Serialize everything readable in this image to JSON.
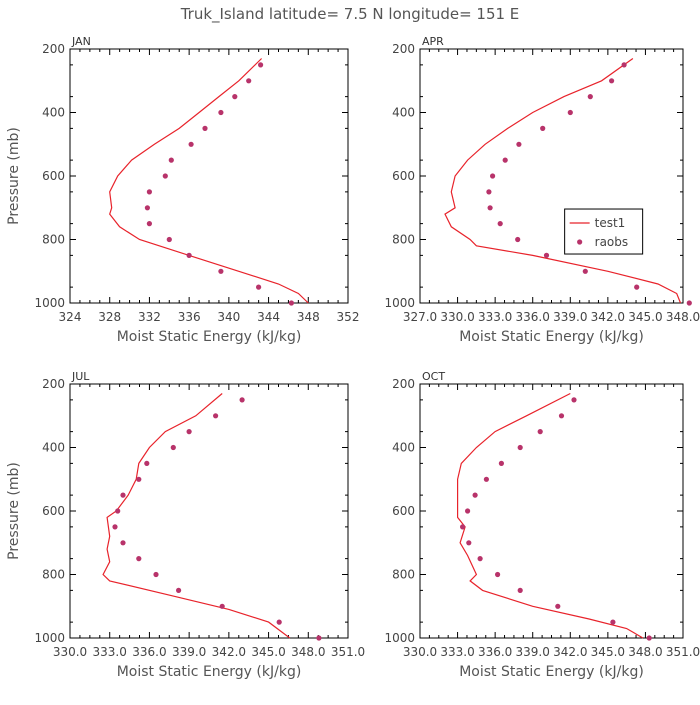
{
  "figure_title": "Truk_Island  latitude= 7.5 N longitude= 151 E",
  "colors": {
    "model": "#e8232b",
    "obs": "#b8336a",
    "axis": "#000000"
  },
  "chart_data": [
    {
      "type": "line",
      "panel": "JAN",
      "xlabel": "Moist Static Energy (kJ/kg)",
      "ylabel": "Pressure (mb)",
      "xlim": [
        324,
        352
      ],
      "ylim": [
        1000,
        200
      ],
      "x_ticks": [
        "324",
        "328",
        "332",
        "336",
        "340",
        "344",
        "348",
        "352"
      ],
      "y_ticks": [
        "200",
        "400",
        "600",
        "800",
        "1000"
      ],
      "series": [
        {
          "name": "test1",
          "kind": "line",
          "points": [
            [
              343.3,
              230
            ],
            [
              341.0,
              300
            ],
            [
              339.0,
              350
            ],
            [
              337.0,
              400
            ],
            [
              335.0,
              450
            ],
            [
              332.5,
              500
            ],
            [
              330.2,
              550
            ],
            [
              328.8,
              600
            ],
            [
              328.0,
              650
            ],
            [
              328.2,
              700
            ],
            [
              328.0,
              720
            ],
            [
              329.0,
              760
            ],
            [
              331.0,
              800
            ],
            [
              336.0,
              850
            ],
            [
              341.0,
              900
            ],
            [
              345.0,
              940
            ],
            [
              347.0,
              970
            ],
            [
              348.0,
              1000
            ]
          ]
        },
        {
          "name": "raobs",
          "kind": "scatter",
          "points": [
            [
              343.2,
              250
            ],
            [
              342.0,
              300
            ],
            [
              340.6,
              350
            ],
            [
              339.2,
              400
            ],
            [
              337.6,
              450
            ],
            [
              336.2,
              500
            ],
            [
              334.2,
              550
            ],
            [
              333.6,
              600
            ],
            [
              332.0,
              650
            ],
            [
              331.8,
              700
            ],
            [
              332.0,
              750
            ],
            [
              334.0,
              800
            ],
            [
              336.0,
              850
            ],
            [
              339.2,
              900
            ],
            [
              343.0,
              950
            ],
            [
              346.3,
              1000
            ]
          ]
        }
      ]
    },
    {
      "type": "line",
      "panel": "APR",
      "xlabel": "Moist Static Energy (kJ/kg)",
      "ylabel": "",
      "xlim": [
        327.0,
        348.0
      ],
      "ylim": [
        1000,
        200
      ],
      "x_ticks": [
        "327.0",
        "330.0",
        "333.0",
        "336.0",
        "339.0",
        "342.0",
        "345.0",
        "348.0"
      ],
      "y_ticks": [
        "200",
        "400",
        "600",
        "800",
        "1000"
      ],
      "series": [
        {
          "name": "test1",
          "kind": "line",
          "points": [
            [
              344.0,
              230
            ],
            [
              341.5,
              300
            ],
            [
              338.5,
              350
            ],
            [
              336.0,
              400
            ],
            [
              334.0,
              450
            ],
            [
              332.2,
              500
            ],
            [
              330.8,
              550
            ],
            [
              329.8,
              600
            ],
            [
              329.5,
              650
            ],
            [
              329.8,
              700
            ],
            [
              329.0,
              720
            ],
            [
              329.5,
              760
            ],
            [
              331.0,
              800
            ],
            [
              331.5,
              820
            ],
            [
              336.0,
              850
            ],
            [
              342.0,
              900
            ],
            [
              346.0,
              940
            ],
            [
              347.5,
              970
            ],
            [
              347.8,
              1000
            ]
          ]
        },
        {
          "name": "raobs",
          "kind": "scatter",
          "points": [
            [
              343.3,
              250
            ],
            [
              342.3,
              300
            ],
            [
              340.6,
              350
            ],
            [
              339.0,
              400
            ],
            [
              336.8,
              450
            ],
            [
              334.9,
              500
            ],
            [
              333.8,
              550
            ],
            [
              332.8,
              600
            ],
            [
              332.5,
              650
            ],
            [
              332.6,
              700
            ],
            [
              333.4,
              750
            ],
            [
              334.8,
              800
            ],
            [
              337.1,
              850
            ],
            [
              340.2,
              900
            ],
            [
              344.3,
              950
            ],
            [
              348.5,
              1000
            ]
          ]
        }
      ]
    },
    {
      "type": "line",
      "panel": "JUL",
      "xlabel": "Moist Static Energy (kJ/kg)",
      "ylabel": "Pressure (mb)",
      "xlim": [
        330.0,
        351.0
      ],
      "ylim": [
        1000,
        200
      ],
      "x_ticks": [
        "330.0",
        "333.0",
        "336.0",
        "339.0",
        "342.0",
        "345.0",
        "348.0",
        "351.0"
      ],
      "y_ticks": [
        "200",
        "400",
        "600",
        "800",
        "1000"
      ],
      "series": [
        {
          "name": "test1",
          "kind": "line",
          "points": [
            [
              341.5,
              230
            ],
            [
              339.5,
              300
            ],
            [
              337.2,
              350
            ],
            [
              336.0,
              400
            ],
            [
              335.2,
              450
            ],
            [
              335.0,
              500
            ],
            [
              334.4,
              550
            ],
            [
              333.5,
              600
            ],
            [
              332.8,
              620
            ],
            [
              333.0,
              680
            ],
            [
              332.8,
              720
            ],
            [
              333.0,
              760
            ],
            [
              332.5,
              800
            ],
            [
              333.0,
              820
            ],
            [
              338.0,
              870
            ],
            [
              342.0,
              910
            ],
            [
              345.0,
              950
            ],
            [
              346.6,
              1000
            ]
          ]
        },
        {
          "name": "raobs",
          "kind": "scatter",
          "points": [
            [
              343.0,
              250
            ],
            [
              341.0,
              300
            ],
            [
              339.0,
              350
            ],
            [
              337.8,
              400
            ],
            [
              335.8,
              450
            ],
            [
              335.2,
              500
            ],
            [
              334.0,
              550
            ],
            [
              333.6,
              600
            ],
            [
              333.4,
              650
            ],
            [
              334.0,
              700
            ],
            [
              335.2,
              750
            ],
            [
              336.5,
              800
            ],
            [
              338.2,
              850
            ],
            [
              341.5,
              900
            ],
            [
              345.8,
              950
            ],
            [
              348.8,
              1000
            ]
          ]
        }
      ]
    },
    {
      "type": "line",
      "panel": "OCT",
      "xlabel": "Moist Static Energy (kJ/kg)",
      "ylabel": "",
      "xlim": [
        330.0,
        351.0
      ],
      "ylim": [
        1000,
        200
      ],
      "x_ticks": [
        "330.0",
        "333.0",
        "336.0",
        "339.0",
        "342.0",
        "345.0",
        "348.0",
        "351.0"
      ],
      "y_ticks": [
        "200",
        "400",
        "600",
        "800",
        "1000"
      ],
      "series": [
        {
          "name": "test1",
          "kind": "line",
          "points": [
            [
              342.0,
              230
            ],
            [
              338.5,
              300
            ],
            [
              336.0,
              350
            ],
            [
              334.5,
              400
            ],
            [
              333.3,
              450
            ],
            [
              333.0,
              500
            ],
            [
              333.0,
              560
            ],
            [
              333.0,
              620
            ],
            [
              333.6,
              650
            ],
            [
              333.2,
              700
            ],
            [
              333.8,
              740
            ],
            [
              334.5,
              800
            ],
            [
              334.0,
              820
            ],
            [
              335.0,
              850
            ],
            [
              339.0,
              900
            ],
            [
              343.5,
              940
            ],
            [
              346.5,
              970
            ],
            [
              347.8,
              1000
            ]
          ]
        },
        {
          "name": "raobs",
          "kind": "scatter",
          "points": [
            [
              342.3,
              250
            ],
            [
              341.3,
              300
            ],
            [
              339.6,
              350
            ],
            [
              338.0,
              400
            ],
            [
              336.5,
              450
            ],
            [
              335.3,
              500
            ],
            [
              334.4,
              550
            ],
            [
              333.8,
              600
            ],
            [
              333.4,
              650
            ],
            [
              333.9,
              700
            ],
            [
              334.8,
              750
            ],
            [
              336.2,
              800
            ],
            [
              338.0,
              850
            ],
            [
              341.0,
              900
            ],
            [
              345.4,
              950
            ],
            [
              348.3,
              1000
            ]
          ]
        }
      ]
    }
  ],
  "legend": {
    "items": [
      "test1",
      "raobs"
    ],
    "panel": "APR",
    "placement": "right"
  }
}
